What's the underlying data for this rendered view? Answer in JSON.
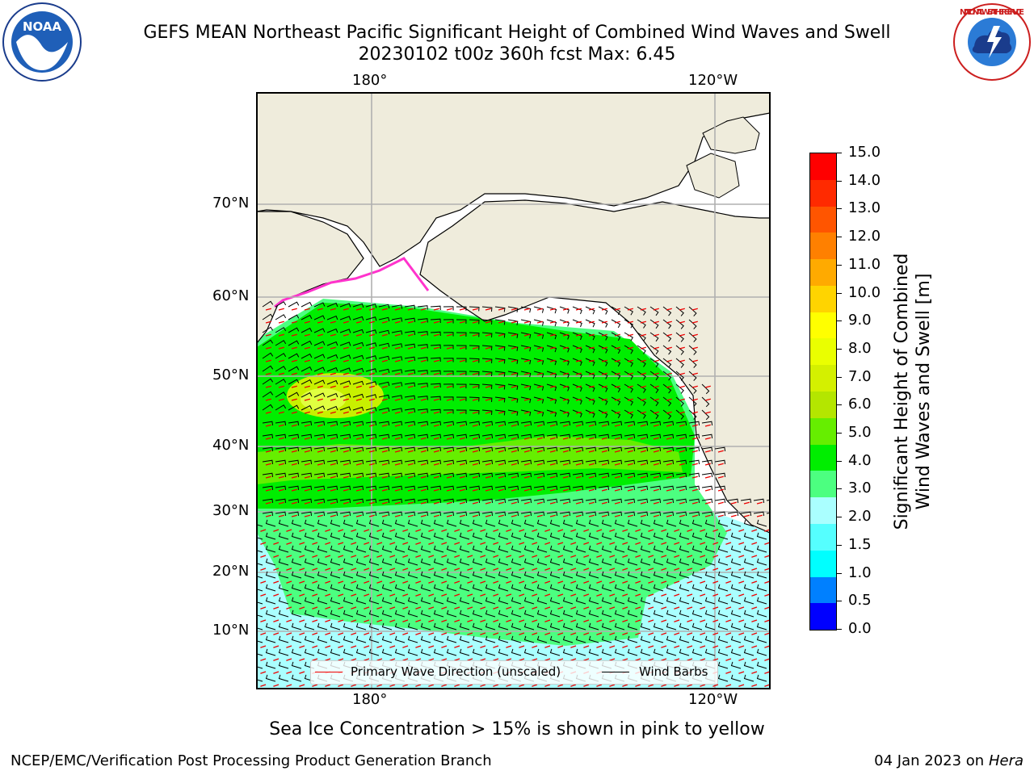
{
  "header": {
    "title_line1": "GEFS MEAN Northeast Pacific Significant Height of Combined Wind Waves and Swell",
    "title_line2": "20230102 t00z 360h fcst   Max: 6.45"
  },
  "logos": {
    "left_text": "NOAA",
    "right_text": "NATIONAL WEATHER SERVICE"
  },
  "map": {
    "top_lon_labels": [
      "180°",
      "120°W"
    ],
    "bottom_lon_labels": [
      "180°",
      "120°W"
    ],
    "lat_labels": [
      "70°N",
      "60°N",
      "50°N",
      "40°N",
      "30°N",
      "20°N",
      "10°N"
    ],
    "colors": {
      "land": "#efecdc",
      "ocean_low": "#aaffff",
      "ocean_mid": "#4cff80",
      "ocean_high": "#00ee00",
      "ocean_peak": "#c8f000",
      "arrow": "#ee0000",
      "barb": "#000000",
      "grid": "#b0b0b0"
    },
    "legend": {
      "wave_label": "Primary Wave Direction (unscaled)",
      "barb_label": "Wind Barbs"
    }
  },
  "colorbar": {
    "title_line1": "Significant Height of Combined",
    "title_line2": "Wind Waves and Swell [m]",
    "ticks": [
      "15.0",
      "14.0",
      "13.0",
      "12.0",
      "11.0",
      "10.0",
      "9.0",
      "8.0",
      "7.0",
      "6.0",
      "5.0",
      "4.0",
      "3.0",
      "2.0",
      "1.5",
      "1.0",
      "0.5",
      "0.0"
    ],
    "colors_top_to_bottom": [
      "#ff0000",
      "#ff2a00",
      "#ff5500",
      "#ff8000",
      "#ffaa00",
      "#ffd400",
      "#ffff00",
      "#eaff00",
      "#d4f000",
      "#b4e600",
      "#66ee00",
      "#00ee00",
      "#4cff80",
      "#aaffff",
      "#55ffff",
      "#00ffff",
      "#0080ff",
      "#0000ff"
    ]
  },
  "footer": {
    "sea_ice_note": "Sea Ice Concentration > 15% is shown in pink to yellow",
    "left": "NCEP/EMC/Verification Post Processing Product Generation Branch",
    "right_date": "04 Jan 2023 on ",
    "right_host": "Hera"
  }
}
